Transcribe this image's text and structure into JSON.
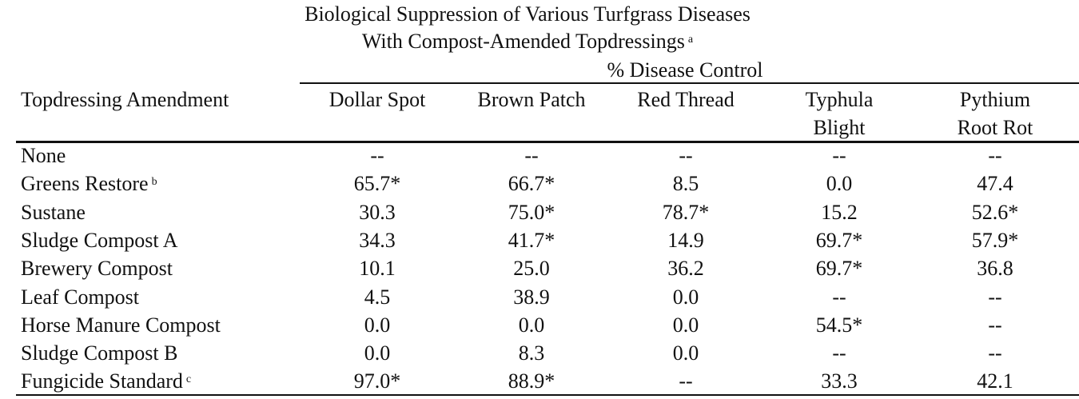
{
  "title": [
    "Biological Suppression of Various Turfgrass Diseases",
    "With Compost-Amended Topdressings"
  ],
  "title_note": "a",
  "group_header": "% Disease Control",
  "columns": [
    [
      "Topdressing Amendment"
    ],
    [
      "Dollar Spot"
    ],
    [
      "Brown Patch"
    ],
    [
      "Red Thread"
    ],
    [
      "Typhula",
      "Blight"
    ],
    [
      "Pythium",
      "Root Rot"
    ]
  ],
  "rows": [
    {
      "cells": [
        "None",
        "--",
        "--",
        "--",
        "--",
        "--"
      ]
    },
    {
      "cells": [
        "Greens Restore",
        "65.7*",
        "66.7*",
        "8.5",
        "0.0",
        "47.4"
      ],
      "note": "b"
    },
    {
      "cells": [
        "Sustane",
        "30.3",
        "75.0*",
        "78.7*",
        "15.2",
        "52.6*"
      ]
    },
    {
      "cells": [
        "Sludge Compost A",
        "34.3",
        "41.7*",
        "14.9",
        "69.7*",
        "57.9*"
      ]
    },
    {
      "cells": [
        "Brewery Compost",
        "10.1",
        "25.0",
        "36.2",
        "69.7*",
        "36.8"
      ]
    },
    {
      "cells": [
        "Leaf Compost",
        "4.5",
        "38.9",
        "0.0",
        "--",
        "--"
      ]
    },
    {
      "cells": [
        "Horse Manure Compost",
        "0.0",
        "0.0",
        "0.0",
        "54.5*",
        "--"
      ]
    },
    {
      "cells": [
        "Sludge Compost B",
        "0.0",
        "8.3",
        "0.0",
        "--",
        "--"
      ]
    },
    {
      "cells": [
        "Fungicide Standard",
        "97.0*",
        "88.9*",
        "--",
        "33.3",
        "42.1"
      ],
      "note": "c"
    }
  ]
}
